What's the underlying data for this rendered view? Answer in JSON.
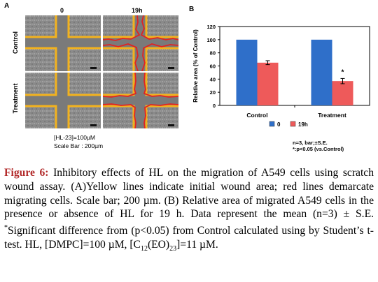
{
  "panel_a": {
    "label": "A",
    "col_labels": [
      "0",
      "19h"
    ],
    "row_labels": [
      "Control",
      "Treatment"
    ],
    "note_line1": "[HL-23]=100µM",
    "note_line2": "Scale Bar : 200µm"
  },
  "panel_b": {
    "label": "B",
    "legend": [
      "0",
      "19h"
    ],
    "footnote_line1": "n=3, bar;±S.E.",
    "footnote_line2": "*:p<0.05 (vs.Control)",
    "significance_marker": "*"
  },
  "chart_data": {
    "type": "bar",
    "categories": [
      "Control",
      "Treatment"
    ],
    "series": [
      {
        "name": "0",
        "values": [
          100,
          100
        ],
        "errors": [
          0,
          0
        ],
        "color": "#2f6fc9"
      },
      {
        "name": "19h",
        "values": [
          65,
          37
        ],
        "errors": [
          3,
          4
        ],
        "color": "#ee5a5a"
      }
    ],
    "ylabel": "Relative area (% of Control)",
    "ylim": [
      0,
      120
    ],
    "yticks": [
      0,
      20,
      40,
      60,
      80,
      100,
      120
    ],
    "grid": false,
    "legend_position": "bottom"
  },
  "caption": {
    "figure_label": "Figure 6:",
    "text_1": " Inhibitory effects of HL on the migration of A549 cells using scratch wound assay. (A)Yellow lines indicate initial wound area; red lines demarcate migrating cells. Scale bar; 200 µm. (B) Relative area of migrated A549 cells in the presence or absence of HL for 19 h. Data represent the mean (n=3) ± S.E. ",
    "sup_star": "*",
    "text_2": "Significant difference from (p<0.05) from Control calculated using by Student’s t-test. HL, [DMPC]=100 µM, [C",
    "sub_1": "12",
    "text_3": "(EO)",
    "sub_2": "23",
    "text_4": "]=11 µM."
  }
}
